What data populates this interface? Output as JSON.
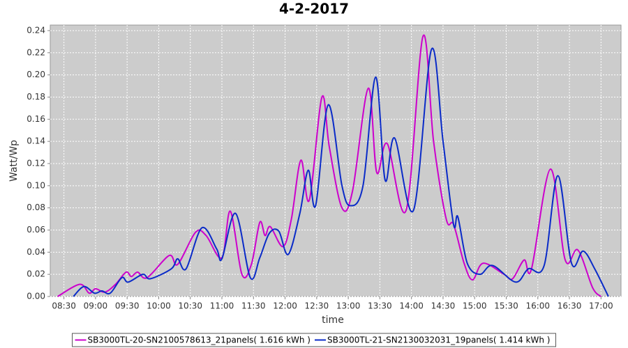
{
  "chart_data": {
    "type": "line",
    "title": "4-2-2017",
    "x_label": "time",
    "y_label": "Watt/Wp",
    "xlim": [
      "08:17",
      "17:19"
    ],
    "xticks": [
      "08:30",
      "09:00",
      "09:30",
      "10:00",
      "10:30",
      "11:00",
      "11:30",
      "12:00",
      "12:30",
      "13:00",
      "13:30",
      "14:00",
      "14:30",
      "15:00",
      "15:30",
      "16:00",
      "16:30",
      "17:00"
    ],
    "ylim": [
      0,
      0.245
    ],
    "yticks": [
      {
        "value": 0,
        "label": "0.00"
      },
      {
        "value": 0.02,
        "label": "0.02"
      },
      {
        "value": 0.04,
        "label": "0.04"
      },
      {
        "value": 0.06,
        "label": "0.06"
      },
      {
        "value": 0.08,
        "label": "0.08"
      },
      {
        "value": 0.1,
        "label": "0.10"
      },
      {
        "value": 0.12,
        "label": "0.12"
      },
      {
        "value": 0.14,
        "label": "0.14"
      },
      {
        "value": 0.16,
        "label": "0.16"
      },
      {
        "value": 0.18,
        "label": "0.18"
      },
      {
        "value": 0.2,
        "label": "0.20"
      },
      {
        "value": 0.22,
        "label": "0.22"
      },
      {
        "value": 0.24,
        "label": "0.24"
      }
    ],
    "grid": true,
    "legend": "bottom",
    "series": [
      {
        "name": "SB3000TL-20-SN2100578613_21panels( 1.616 kWh )",
        "color": "#cc00cc",
        "x": [
          "08:24",
          "08:45",
          "08:54",
          "09:00",
          "09:09",
          "09:19",
          "09:29",
          "09:34",
          "09:40",
          "09:49",
          "10:10",
          "10:18",
          "10:35",
          "10:45",
          "11:00",
          "11:08",
          "11:19",
          "11:28",
          "11:36",
          "11:41",
          "11:46",
          "11:58",
          "12:06",
          "12:15",
          "12:23",
          "12:35",
          "12:42",
          "12:54",
          "13:04",
          "13:19",
          "13:27",
          "13:37",
          "13:55",
          "14:11",
          "14:21",
          "14:33",
          "14:40",
          "14:50",
          "14:58",
          "15:08",
          "15:28",
          "15:36",
          "15:47",
          "15:54",
          "16:12",
          "16:26",
          "16:38",
          "16:52",
          "17:00"
        ],
        "values": [
          0,
          0.011,
          0.003,
          0.007,
          0.004,
          0.011,
          0.022,
          0.018,
          0.022,
          0.017,
          0.037,
          0.029,
          0.058,
          0.055,
          0.035,
          0.077,
          0.02,
          0.029,
          0.067,
          0.055,
          0.063,
          0.045,
          0.07,
          0.123,
          0.087,
          0.18,
          0.135,
          0.08,
          0.095,
          0.188,
          0.112,
          0.138,
          0.078,
          0.235,
          0.14,
          0.07,
          0.065,
          0.03,
          0.015,
          0.03,
          0.02,
          0.016,
          0.033,
          0.025,
          0.115,
          0.033,
          0.042,
          0.008,
          0
        ]
      },
      {
        "name": "SB3000TL-21-SN2130032031_19panels( 1.414 kWh )",
        "color": "#0a2bc8",
        "x": [
          "08:39",
          "08:49",
          "08:59",
          "09:06",
          "09:14",
          "09:25",
          "09:31",
          "09:45",
          "09:52",
          "10:12",
          "10:18",
          "10:26",
          "10:41",
          "10:55",
          "11:00",
          "11:13",
          "11:27",
          "11:36",
          "11:45",
          "11:54",
          "12:03",
          "12:14",
          "12:22",
          "12:29",
          "12:41",
          "12:54",
          "13:02",
          "13:14",
          "13:26",
          "13:35",
          "13:44",
          "14:02",
          "14:19",
          "14:30",
          "14:40",
          "14:44",
          "14:53",
          "15:05",
          "15:17",
          "15:39",
          "15:51",
          "16:06",
          "16:19",
          "16:32",
          "16:43",
          "16:54",
          "17:07"
        ],
        "values": [
          0,
          0.009,
          0.003,
          0.005,
          0.003,
          0.017,
          0.013,
          0.02,
          0.016,
          0.025,
          0.034,
          0.025,
          0.062,
          0.043,
          0.034,
          0.075,
          0.017,
          0.035,
          0.057,
          0.059,
          0.038,
          0.075,
          0.114,
          0.082,
          0.173,
          0.1,
          0.082,
          0.1,
          0.198,
          0.105,
          0.143,
          0.078,
          0.223,
          0.14,
          0.065,
          0.072,
          0.03,
          0.02,
          0.028,
          0.013,
          0.025,
          0.028,
          0.109,
          0.03,
          0.041,
          0.025,
          0
        ]
      }
    ]
  }
}
